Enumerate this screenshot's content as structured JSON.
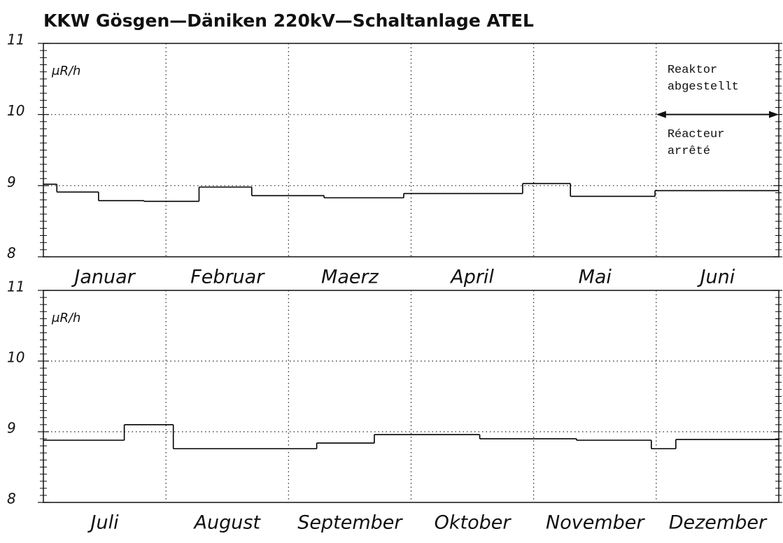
{
  "chart_data": [
    {
      "type": "step",
      "title": "KKW Gösgen—Däniken 220kV—Schaltanlage ATEL",
      "unit_label": "μR/h",
      "categories": [
        "Januar",
        "Februar",
        "Maerz",
        "April",
        "Mai",
        "Juni"
      ],
      "xlim": [
        0,
        6
      ],
      "ylim": [
        8,
        11
      ],
      "yticks": [
        8,
        9,
        10,
        11
      ],
      "grid": true,
      "annotations": [
        "Reaktor",
        "abgestellt",
        "Réacteur",
        "arrêté"
      ],
      "series": [
        {
          "color": "#000000",
          "x": [
            0,
            0.11,
            0.45,
            0.82,
            1.27,
            1.7,
            2.29,
            2.94,
            3.91,
            4.3,
            4.99
          ],
          "values": [
            9.02,
            8.91,
            8.79,
            8.78,
            8.98,
            8.86,
            8.83,
            8.89,
            9.03,
            8.85,
            8.93
          ]
        }
      ]
    },
    {
      "type": "step",
      "unit_label": "μR/h",
      "categories": [
        "Juli",
        "August",
        "September",
        "Oktober",
        "November",
        "Dezember"
      ],
      "xlim": [
        0,
        6
      ],
      "ylim": [
        8,
        11
      ],
      "yticks": [
        8,
        9,
        10,
        11
      ],
      "grid": true,
      "series": [
        {
          "color": "#000000",
          "x": [
            0,
            0.66,
            1.06,
            2.23,
            2.7,
            3.56,
            4.35,
            4.96,
            5.16
          ],
          "values": [
            8.88,
            9.1,
            8.76,
            8.84,
            8.96,
            8.9,
            8.88,
            8.76,
            8.89
          ]
        }
      ]
    }
  ]
}
